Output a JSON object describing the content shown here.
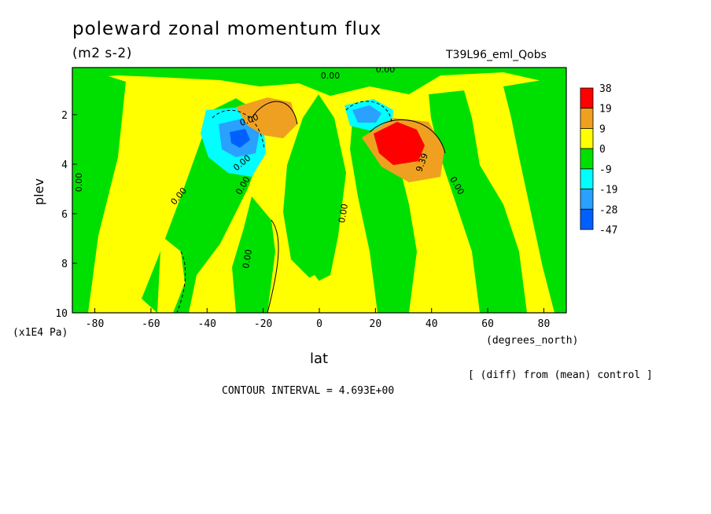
{
  "chart_data": {
    "type": "heatmap",
    "title": "poleward zonal momentum flux",
    "units": "(m2 s-2)",
    "run_label": "T39L96_eml_Qobs",
    "xlabel": "lat",
    "x_unit_label": "(degrees_north)",
    "ylabel": "plev",
    "y_unit_label": "(x1E4 Pa)",
    "x_ticks": [
      "-80",
      "-60",
      "-40",
      "-20",
      "0",
      "20",
      "40",
      "60",
      "80"
    ],
    "x_tick_values": [
      -80,
      -60,
      -40,
      -20,
      0,
      20,
      40,
      60,
      80
    ],
    "y_ticks": [
      "2",
      "4",
      "6",
      "8",
      "10"
    ],
    "y_tick_values": [
      2,
      4,
      6,
      8,
      10
    ],
    "xlim": [
      -88,
      88
    ],
    "ylim": [
      0.1,
      10
    ],
    "y_inverted": true,
    "colorbar": {
      "labels": [
        "38",
        "19",
        "9",
        "0",
        "-9",
        "-19",
        "-28",
        "-47"
      ],
      "colors": [
        "#ff0000",
        "#f0a020",
        "#ffff00",
        "#00e000",
        "#00ffff",
        "#2aa0ff",
        "#0060ff"
      ]
    },
    "contour_labels": [
      "0.00",
      "0.00",
      "0.00",
      "0.00",
      "0.00",
      "0.00",
      "9.39",
      "0.00",
      "0.00",
      "0.00",
      "0.00"
    ],
    "features": [
      {
        "kind": "min",
        "lat": -26,
        "plev": 2.8,
        "value": -47
      },
      {
        "kind": "max",
        "lat": -16,
        "plev": 2.2,
        "value": 19
      },
      {
        "kind": "min",
        "lat": 16,
        "plev": 2.1,
        "value": -19
      },
      {
        "kind": "max",
        "lat": 28,
        "plev": 2.9,
        "value": 38
      }
    ],
    "annotations": [
      "[ (diff) from (mean) control ]",
      "CONTOUR INTERVAL = 4.693E+00"
    ],
    "grid": false,
    "legend": "right"
  }
}
